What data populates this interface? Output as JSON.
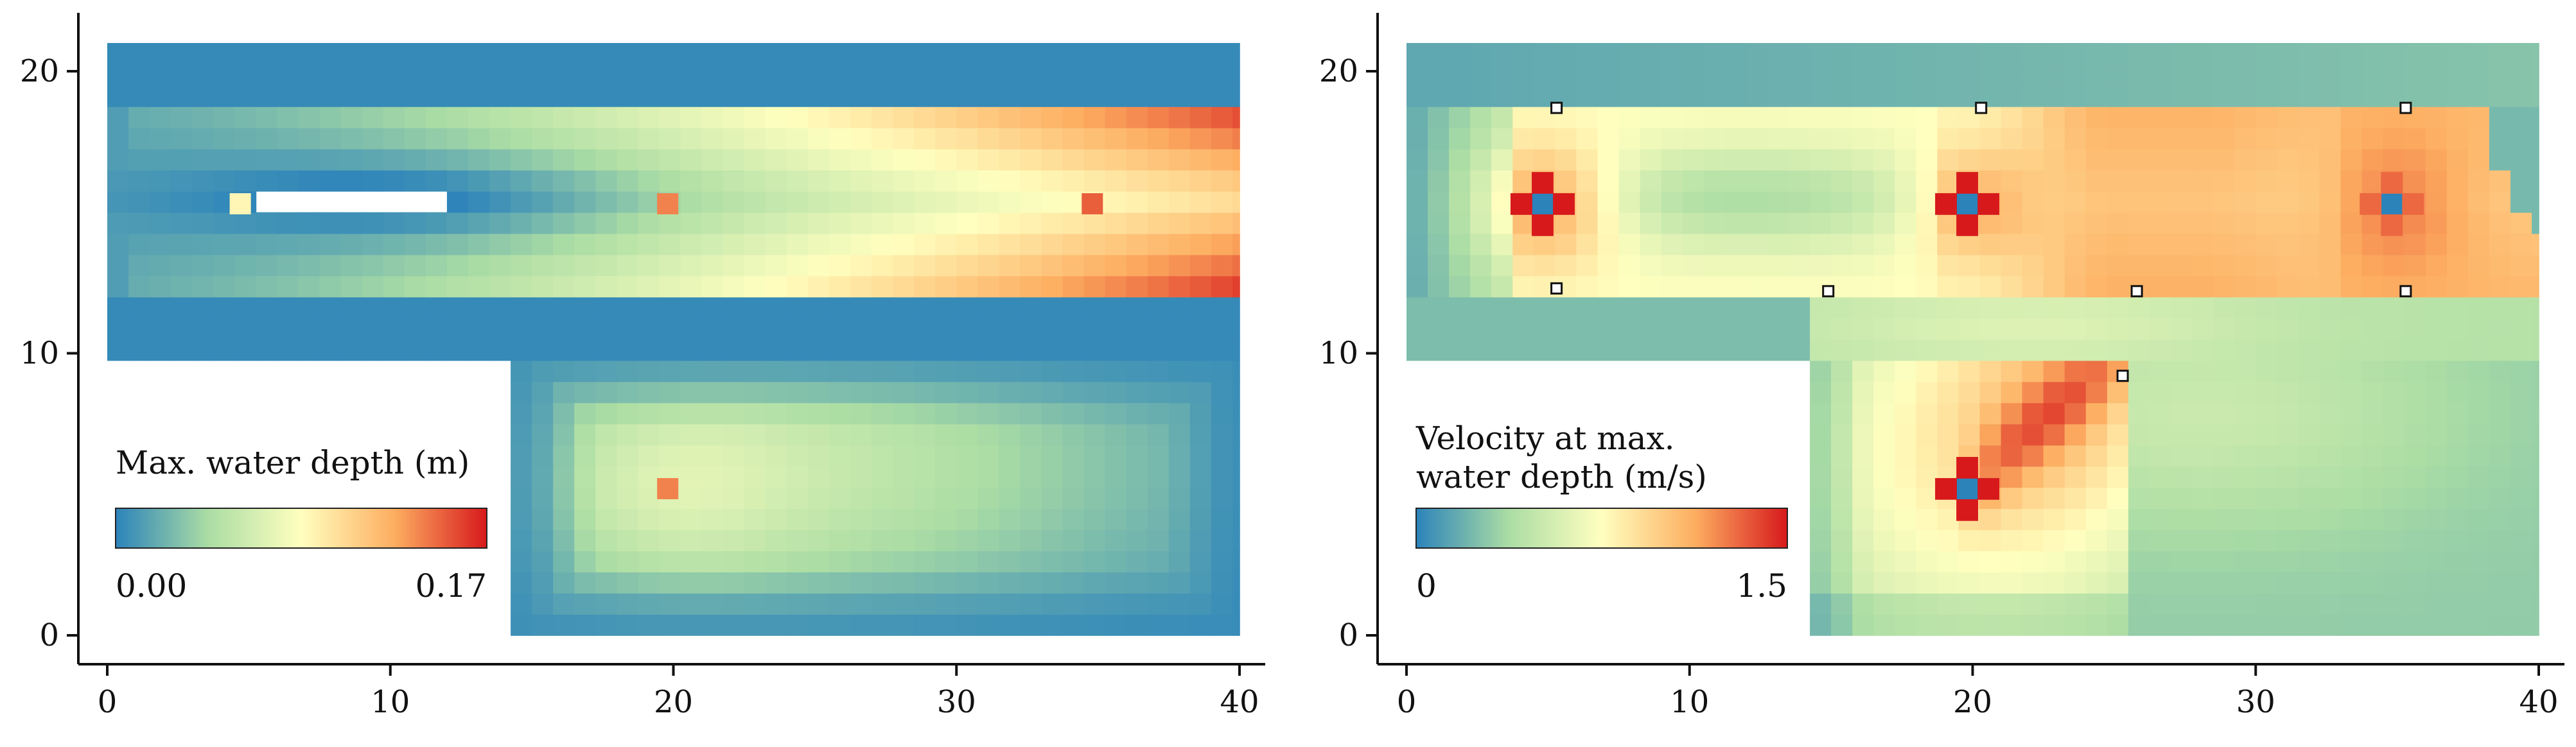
{
  "chart_data": [
    {
      "type": "heatmap",
      "xlim": [
        0,
        40
      ],
      "ylim": [
        0,
        21
      ],
      "xticks": [
        0,
        10,
        20,
        30,
        40
      ],
      "yticks": [
        0,
        10,
        20
      ],
      "xtick_labels": [
        "0",
        "10",
        "20",
        "30",
        "40"
      ],
      "ytick_labels": [
        "0",
        "10",
        "20"
      ],
      "grid": false,
      "colormap": "Spectral_r (blue-green-yellow-red)",
      "colorbar": {
        "title": "Max. water depth (m)",
        "min_label": "0.00",
        "max_label": "0.17",
        "min": 0.0,
        "max": 0.17,
        "placement": "lower-left"
      },
      "domain": {
        "top_band": {
          "x": [
            0,
            40
          ],
          "y": [
            19,
            21
          ],
          "approx_value": 0.0
        },
        "channel": {
          "x": [
            0,
            40
          ],
          "y": [
            12,
            19
          ],
          "values_increase_along_x": [
            0.03,
            0.17
          ]
        },
        "lower_band": {
          "x": [
            0,
            40
          ],
          "y": [
            10,
            12
          ],
          "approx_value": 0.0
        },
        "lower_basin": {
          "x": [
            14.6,
            40
          ],
          "y": [
            0,
            10
          ],
          "approx_value_range": [
            0.0,
            0.07
          ]
        }
      },
      "hotspots": [
        {
          "x": 4.7,
          "y": 15.3,
          "value": 0.09
        },
        {
          "x": 19.8,
          "y": 15.3,
          "value": 0.14
        },
        {
          "x": 34.8,
          "y": 15.3,
          "value": 0.15
        },
        {
          "x": 19.8,
          "y": 5.2,
          "value": 0.14
        }
      ]
    },
    {
      "type": "heatmap",
      "xlim": [
        0,
        40
      ],
      "ylim": [
        0,
        21
      ],
      "xticks": [
        0,
        10,
        20,
        30,
        40
      ],
      "yticks": [
        0,
        10,
        20
      ],
      "xtick_labels": [
        "0",
        "10",
        "20",
        "30",
        "40"
      ],
      "ytick_labels": [
        "0",
        "10",
        "20"
      ],
      "grid": false,
      "colormap": "Spectral_r (blue-green-yellow-red)",
      "colorbar": {
        "title_line1": "Velocity at max.",
        "title_line2": "water depth (m/s)",
        "min_label": "0",
        "max_label": "1.5",
        "min": 0.0,
        "max": 1.5,
        "placement": "lower-left"
      },
      "domain": {
        "top_band": {
          "x": [
            0,
            40
          ],
          "y": [
            19,
            21
          ],
          "approx_value": 0.15
        },
        "channel": {
          "x": [
            0,
            40
          ],
          "y": [
            12,
            19
          ],
          "approx_value_range": [
            0.2,
            1.2
          ]
        },
        "lower_band": {
          "x": [
            0,
            40
          ],
          "y": [
            10,
            12
          ],
          "approx_value": 0.3
        },
        "lower_basin": {
          "x": [
            14.6,
            40
          ],
          "y": [
            0,
            10
          ],
          "approx_value_range": [
            0.1,
            0.9
          ]
        }
      },
      "hotspots": [
        {
          "x": 4.8,
          "y": 15.3,
          "value": 1.5
        },
        {
          "x": 19.8,
          "y": 15.3,
          "value": 1.5
        },
        {
          "x": 34.8,
          "y": 15.3,
          "value": 1.3
        },
        {
          "x": 19.8,
          "y": 5.2,
          "value": 1.5
        }
      ],
      "markers": [
        {
          "x": 5.3,
          "y": 18.7
        },
        {
          "x": 20.3,
          "y": 18.7
        },
        {
          "x": 35.3,
          "y": 18.7
        },
        {
          "x": 5.3,
          "y": 12.3
        },
        {
          "x": 14.9,
          "y": 12.2
        },
        {
          "x": 25.8,
          "y": 12.2
        },
        {
          "x": 35.3,
          "y": 12.2
        },
        {
          "x": 25.3,
          "y": 9.2
        }
      ]
    }
  ]
}
